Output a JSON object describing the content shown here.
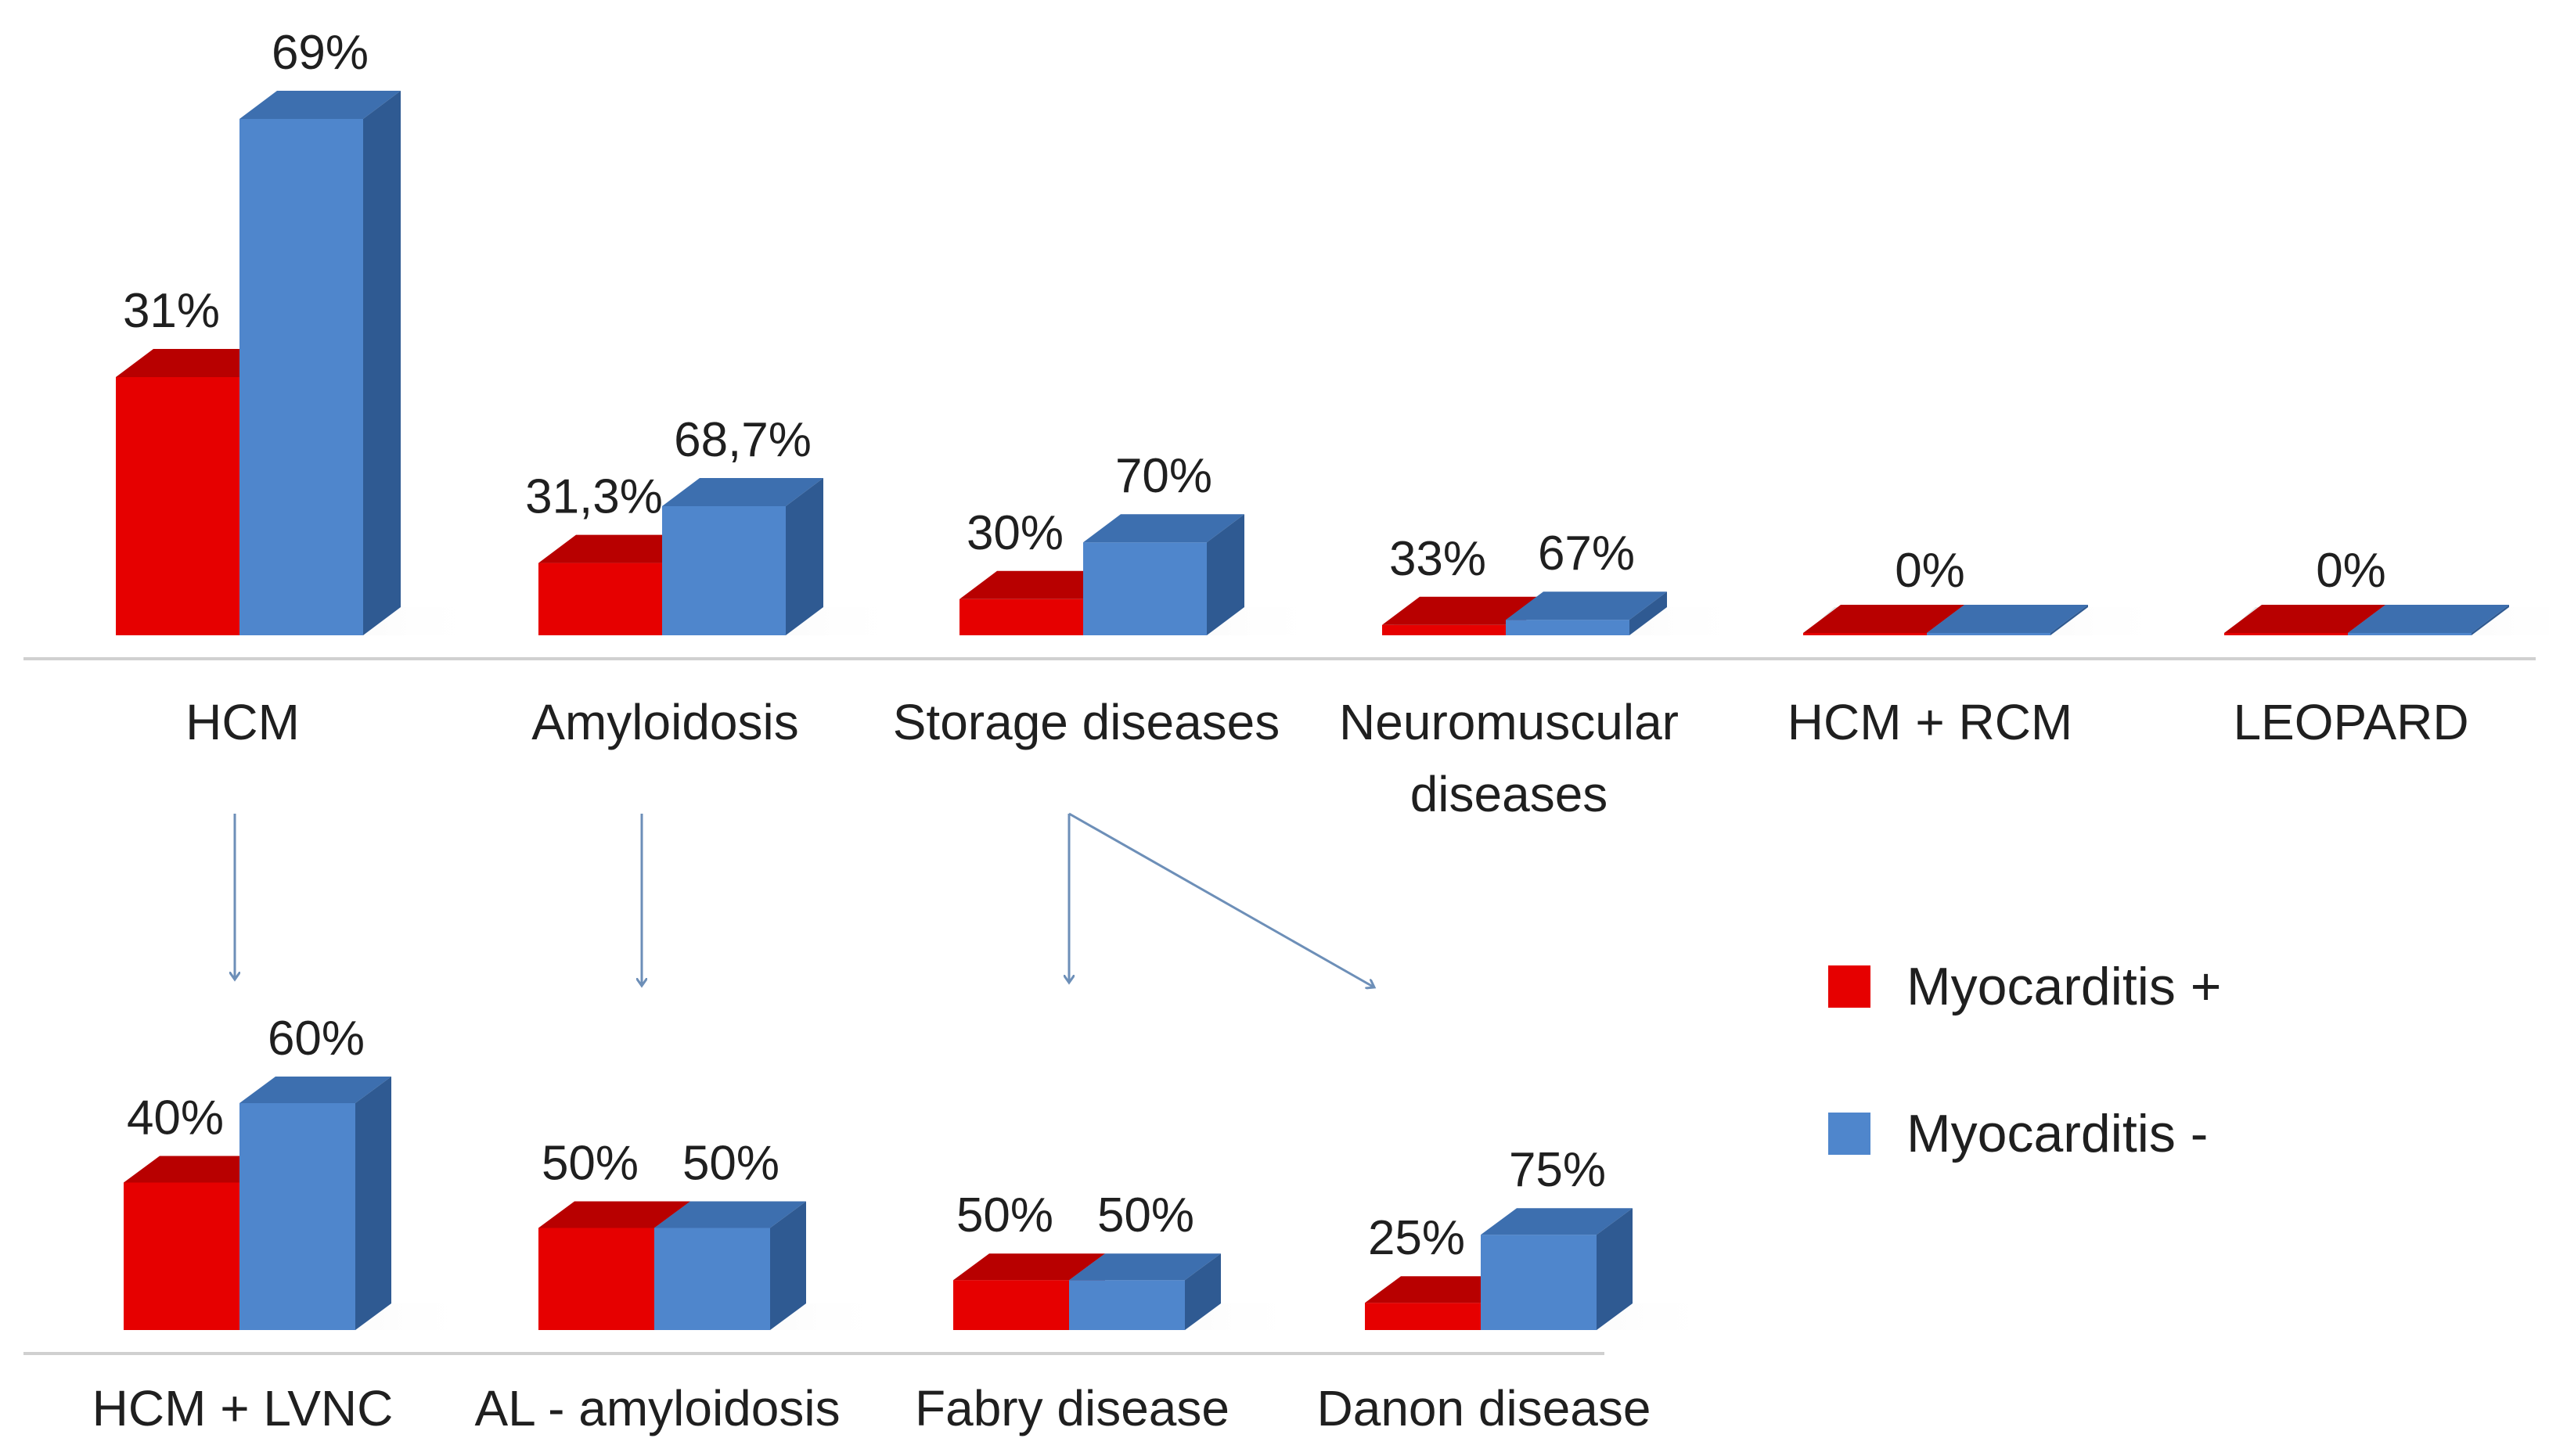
{
  "chart_data": [
    {
      "type": "bar",
      "panel": "top",
      "categories": [
        [
          "HCM"
        ],
        [
          "Amyloidosis"
        ],
        [
          "Storage diseases"
        ],
        [
          "Neuromuscular",
          "diseases"
        ],
        [
          "HCM + RCM"
        ],
        [
          "LEOPARD"
        ]
      ],
      "series": [
        {
          "name": "Myocarditis +",
          "values": [
            31,
            31.3,
            30,
            33,
            0,
            0
          ]
        },
        {
          "name": "Myocarditis -",
          "values": [
            69,
            68.7,
            70,
            67,
            0,
            0
          ]
        }
      ],
      "labels": [
        [
          "31%",
          "69%"
        ],
        [
          "31,3%",
          "68,7%"
        ],
        [
          "30%",
          "70%"
        ],
        [
          "33%",
          "67%"
        ],
        [
          "0%",
          ""
        ],
        [
          "0%",
          ""
        ]
      ],
      "bar_heights_relative": [
        [
          0.5,
          1.0
        ],
        [
          0.14,
          0.25
        ],
        [
          0.07,
          0.18
        ],
        [
          0.02,
          0.03
        ],
        [
          0.0,
          0.0
        ],
        [
          0.0,
          0.0
        ]
      ]
    },
    {
      "type": "bar",
      "panel": "bottom",
      "categories": [
        [
          "HCM + LVNC"
        ],
        [
          "AL - amyloidosis"
        ],
        [
          "Fabry disease"
        ],
        [
          "Danon disease"
        ]
      ],
      "series": [
        {
          "name": "Myocarditis +",
          "values": [
            40,
            50,
            50,
            25
          ]
        },
        {
          "name": "Myocarditis -",
          "values": [
            60,
            50,
            50,
            75
          ]
        }
      ],
      "labels": [
        [
          "40%",
          "60%"
        ],
        [
          "50%",
          "50%"
        ],
        [
          "50%",
          "50%"
        ],
        [
          "25%",
          "75%"
        ]
      ],
      "bar_heights_relative": [
        [
          0.65,
          1.0
        ],
        [
          0.45,
          0.45
        ],
        [
          0.22,
          0.22
        ],
        [
          0.12,
          0.42
        ]
      ]
    }
  ],
  "legend": {
    "items": [
      {
        "label": "Myocarditis +",
        "color": "#e60000"
      },
      {
        "label": "Myocarditis -",
        "color": "#4f86cc"
      }
    ]
  },
  "arrows_from_to": [
    [
      "HCM",
      "HCM + LVNC"
    ],
    [
      "Amyloidosis",
      "AL - amyloidosis"
    ],
    [
      "Storage diseases",
      "Fabry disease"
    ],
    [
      "Storage diseases",
      "Danon disease"
    ]
  ],
  "colors": {
    "red_front": "#e60000",
    "red_top": "#b80000",
    "red_side": "#9d0000",
    "blue_front": "#4f86cc",
    "blue_top": "#3d6faf",
    "blue_side": "#2f5a92",
    "arrow": "#6d8fb8",
    "baseline": "#d0d0d0"
  }
}
